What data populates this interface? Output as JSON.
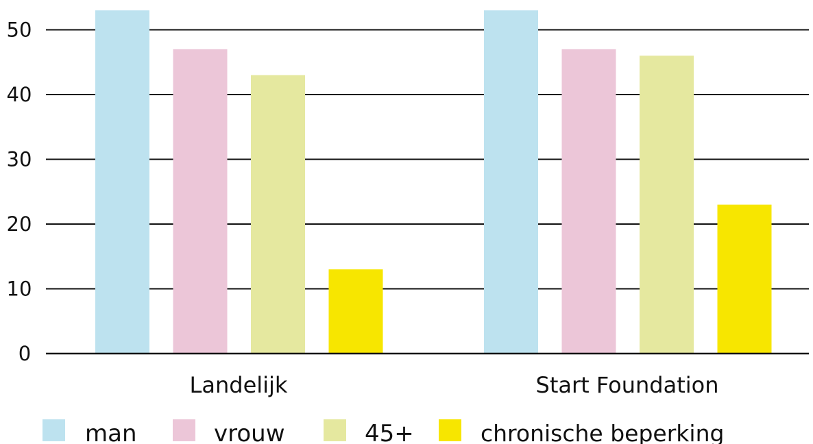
{
  "chart_data": {
    "type": "bar",
    "categories": [
      "Landelijk",
      "Start Foundation"
    ],
    "series": [
      {
        "name": "man",
        "values": [
          53,
          53
        ],
        "color": "#bde2ef"
      },
      {
        "name": "vrouw",
        "values": [
          47,
          47
        ],
        "color": "#ecc6d8"
      },
      {
        "name": "45+",
        "values": [
          43,
          46
        ],
        "color": "#e5e89f"
      },
      {
        "name": "chronische beperking",
        "values": [
          13,
          23
        ],
        "color": "#f7e600"
      }
    ],
    "yticks": [
      "0",
      "10",
      "20",
      "30",
      "40",
      "50"
    ],
    "ylim": [
      0,
      53
    ],
    "grid": true,
    "legend_position": "bottom"
  }
}
